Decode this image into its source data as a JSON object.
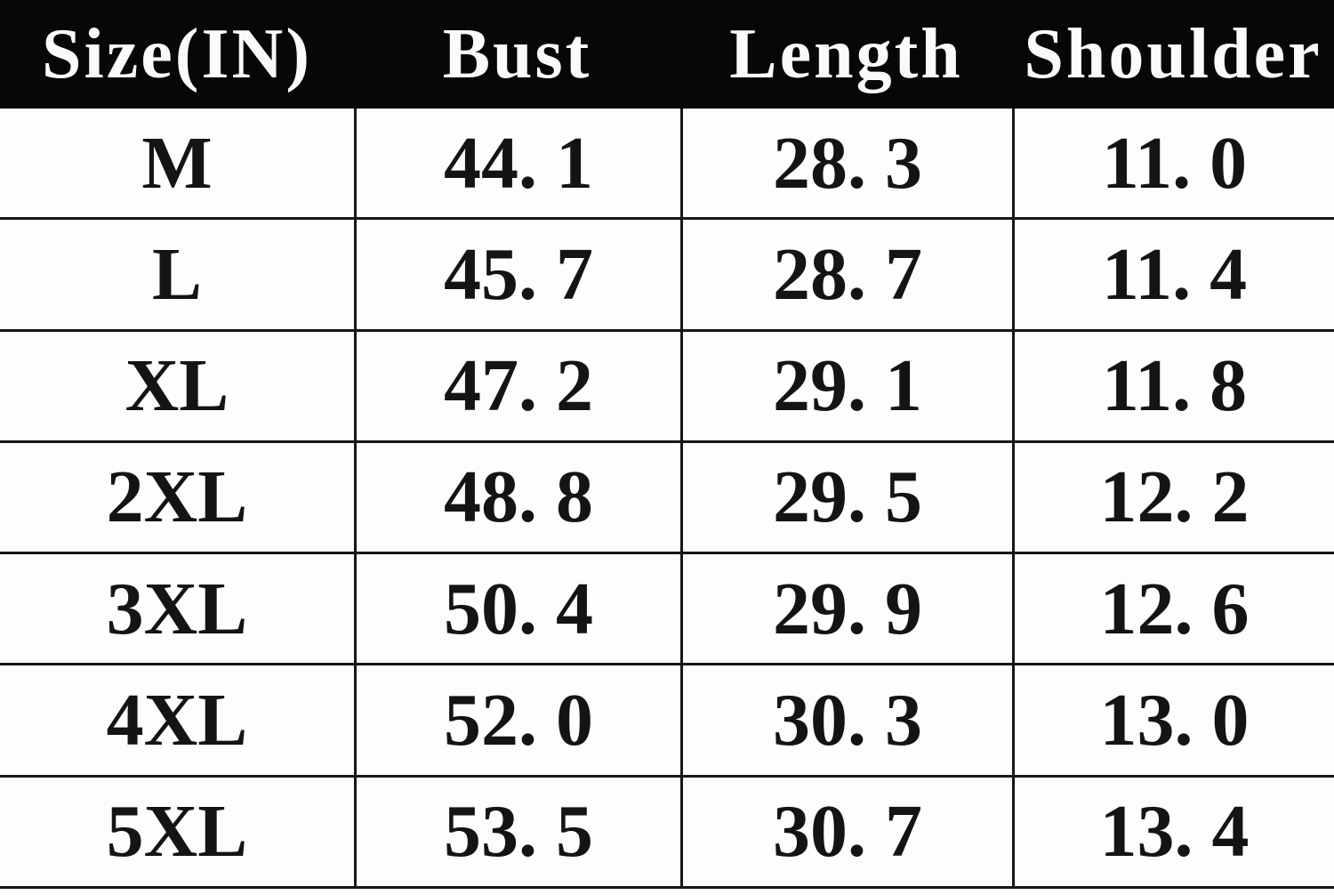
{
  "table": {
    "columns": [
      "Size(IN)",
      "Bust",
      "Length",
      "Shoulder"
    ],
    "rows": [
      {
        "size": "M",
        "bust": "44. 1",
        "length": "28. 3",
        "shoulder": "11. 0"
      },
      {
        "size": "L",
        "bust": "45. 7",
        "length": "28. 7",
        "shoulder": "11. 4"
      },
      {
        "size": "XL",
        "bust": "47. 2",
        "length": "29. 1",
        "shoulder": "11. 8"
      },
      {
        "size": "2XL",
        "bust": "48. 8",
        "length": "29. 5",
        "shoulder": "12. 2"
      },
      {
        "size": "3XL",
        "bust": "50. 4",
        "length": "29. 9",
        "shoulder": "12. 6"
      },
      {
        "size": "4XL",
        "bust": "52. 0",
        "length": "30. 3",
        "shoulder": "13. 0"
      },
      {
        "size": "5XL",
        "bust": "53. 5",
        "length": "30. 7",
        "shoulder": "13. 4"
      }
    ]
  },
  "chart_data": {
    "type": "table",
    "title": "Size(IN)",
    "units": "inches",
    "categories": [
      "M",
      "L",
      "XL",
      "2XL",
      "3XL",
      "4XL",
      "5XL"
    ],
    "series": [
      {
        "name": "Bust",
        "values": [
          44.1,
          45.7,
          47.2,
          48.8,
          50.4,
          52.0,
          53.5
        ]
      },
      {
        "name": "Length",
        "values": [
          28.3,
          28.7,
          29.1,
          29.5,
          29.9,
          30.3,
          30.7
        ]
      },
      {
        "name": "Shoulder",
        "values": [
          11.0,
          11.4,
          11.8,
          12.2,
          12.6,
          13.0,
          13.4
        ]
      }
    ],
    "layout": {
      "header_row": true,
      "grid": "horizontal-full-width, vertical-internal-only"
    }
  },
  "colors": {
    "header_bg": "#070707",
    "header_text": "#fafafa",
    "body_bg": "#fdfdfd",
    "body_text": "#141414",
    "border": "#161616"
  }
}
